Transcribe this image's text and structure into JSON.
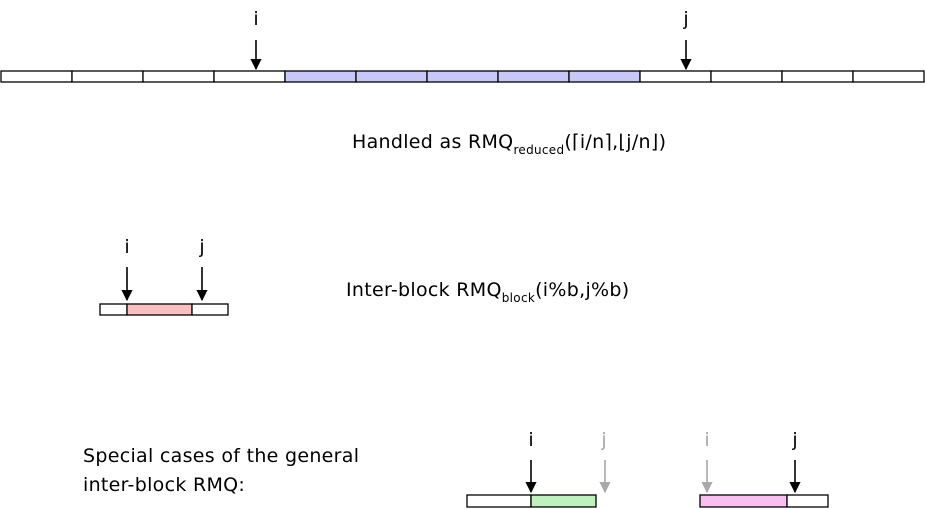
{
  "colors": {
    "outline": "#000000",
    "blue_fill": "#c8c8f8",
    "red_fill": "#f8c0c0",
    "green_fill": "#c0f0c0",
    "pink_fill": "#f8c0f0",
    "white_fill": "#ffffff",
    "ghost": "#a8a8a8"
  },
  "markers": {
    "i": "i",
    "j": "j"
  },
  "top_array": {
    "cell_count": 13,
    "highlighted_cells": [
      4,
      5,
      6,
      7,
      8
    ],
    "i_cell": 3,
    "j_cell": 9
  },
  "caption_reduced": {
    "prefix": "Handled as RMQ",
    "subscript": "reduced",
    "args": "(⌈i/n⌉,⌊j/n⌋)"
  },
  "inter_block": {
    "segments": [
      "white",
      "red",
      "white"
    ],
    "caption_prefix": "Inter-block RMQ",
    "caption_subscript": "block",
    "caption_args": "(i%b,j%b)"
  },
  "special_cases": {
    "line1": "Special cases of the general",
    "line2": "inter-block RMQ:",
    "case_a": {
      "segments": [
        "white",
        "green"
      ],
      "active": "i",
      "ghost": "j"
    },
    "case_b": {
      "segments": [
        "pink",
        "white"
      ],
      "active": "j",
      "ghost": "i"
    }
  }
}
